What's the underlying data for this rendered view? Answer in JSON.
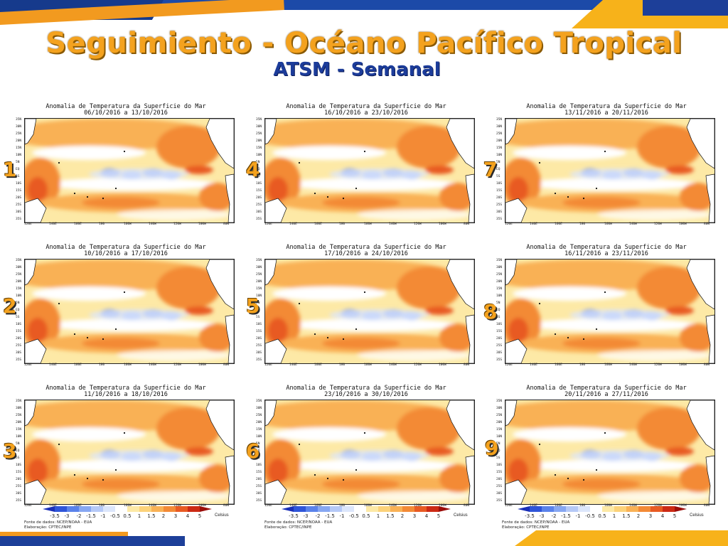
{
  "title": "Seguimiento - Océano Pacífico Tropical",
  "subtitle": "ATSM - Semanal",
  "panel_heading": "Anomalia de Temperatura da Superficie do Mar",
  "panels": [
    {
      "number": "1",
      "dates": "06/10/2016 a 13/10/2016"
    },
    {
      "number": "2",
      "dates": "10/10/2016 a 17/10/2016"
    },
    {
      "number": "3",
      "dates": "11/10/2016 a 18/10/2016"
    },
    {
      "number": "4",
      "dates": "16/10/2016 a 23/10/2016"
    },
    {
      "number": "5",
      "dates": "17/10/2016 a 24/10/2016"
    },
    {
      "number": "6",
      "dates": "23/10/2016 a 30/10/2016"
    },
    {
      "number": "7",
      "dates": "13/11/2016 a 20/11/2016"
    },
    {
      "number": "8",
      "dates": "16/11/2016 a 23/11/2016"
    },
    {
      "number": "9",
      "dates": "20/11/2016 a 27/11/2016"
    }
  ],
  "lat_labels": [
    "35N",
    "30N",
    "25N",
    "20N",
    "15N",
    "10N",
    "5N",
    "EQ",
    "5S",
    "10S",
    "15S",
    "20S",
    "25S",
    "30S",
    "35S"
  ],
  "lon_labels": [
    "120E",
    "140E",
    "160E",
    "180",
    "160W",
    "140W",
    "120W",
    "100W",
    "80W"
  ],
  "legend": {
    "labels": [
      "-3.5",
      "-3",
      "-2",
      "-1.5",
      "-1",
      "-0.5",
      "0.5",
      "1",
      "1.5",
      "2",
      "3",
      "4",
      "5"
    ],
    "unit": "Celsius",
    "colors": [
      "#1a2fb8",
      "#2f55d9",
      "#5a82ea",
      "#86a7f2",
      "#b5c9f7",
      "#dce6fb",
      "#ffffff",
      "#fde9a6",
      "#fcd27a",
      "#f9b155",
      "#f38a36",
      "#e85a22",
      "#cc2a14",
      "#9b0d0a"
    ]
  },
  "source_line1": "Fonte de dados: NCEP/NOAA - EUA",
  "source_line2": "Elaboração: CPTEC/INPE"
}
